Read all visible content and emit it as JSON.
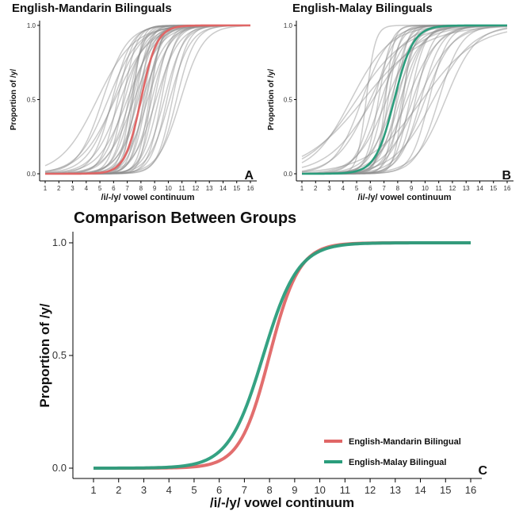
{
  "colors": {
    "mandarin": "#e06666",
    "malay": "#2a9d7c",
    "individual": "#8c8c8c",
    "axis": "#000000",
    "text": "#111111"
  },
  "chart_data": [
    {
      "id": "A",
      "type": "line",
      "title": "English-Mandarin Bilinguals",
      "panel_label": "A",
      "xlabel": "/i/-/y/ vowel continuum",
      "ylabel": "Proportion of /y/",
      "x_ticks": [
        1,
        2,
        3,
        4,
        5,
        6,
        7,
        8,
        9,
        10,
        11,
        12,
        13,
        14,
        15,
        16
      ],
      "y_ticks": [
        0.0,
        0.5,
        1.0
      ],
      "y_tick_labels": [
        "0.0",
        "0.5",
        "1.0"
      ],
      "xlim": [
        1,
        16
      ],
      "ylim": [
        0,
        1
      ],
      "group_curve": {
        "midpoint": 8.0,
        "slope": 1.7,
        "color": "mandarin"
      },
      "individual_curves": [
        {
          "midpoint": 4.8,
          "slope": 0.75
        },
        {
          "midpoint": 5.2,
          "slope": 1.1
        },
        {
          "midpoint": 5.6,
          "slope": 0.9
        },
        {
          "midpoint": 5.9,
          "slope": 1.4
        },
        {
          "midpoint": 6.1,
          "slope": 0.8
        },
        {
          "midpoint": 6.3,
          "slope": 1.7
        },
        {
          "midpoint": 6.5,
          "slope": 1.0
        },
        {
          "midpoint": 6.7,
          "slope": 2.0
        },
        {
          "midpoint": 6.8,
          "slope": 1.3
        },
        {
          "midpoint": 7.0,
          "slope": 0.95
        },
        {
          "midpoint": 7.1,
          "slope": 1.8
        },
        {
          "midpoint": 7.2,
          "slope": 1.2
        },
        {
          "midpoint": 7.3,
          "slope": 2.3
        },
        {
          "midpoint": 7.4,
          "slope": 1.5
        },
        {
          "midpoint": 7.5,
          "slope": 1.0
        },
        {
          "midpoint": 7.6,
          "slope": 2.1
        },
        {
          "midpoint": 7.7,
          "slope": 1.6
        },
        {
          "midpoint": 7.8,
          "slope": 1.3
        },
        {
          "midpoint": 7.9,
          "slope": 2.5
        },
        {
          "midpoint": 8.0,
          "slope": 1.8
        },
        {
          "midpoint": 8.1,
          "slope": 1.1
        },
        {
          "midpoint": 8.2,
          "slope": 2.2
        },
        {
          "midpoint": 8.3,
          "slope": 1.6
        },
        {
          "midpoint": 8.4,
          "slope": 1.9
        },
        {
          "midpoint": 8.5,
          "slope": 1.2
        },
        {
          "midpoint": 8.6,
          "slope": 2.4
        },
        {
          "midpoint": 8.8,
          "slope": 1.5
        },
        {
          "midpoint": 9.0,
          "slope": 1.9
        },
        {
          "midpoint": 9.1,
          "slope": 1.2
        },
        {
          "midpoint": 9.3,
          "slope": 1.6
        },
        {
          "midpoint": 9.5,
          "slope": 2.0
        },
        {
          "midpoint": 9.7,
          "slope": 1.4
        },
        {
          "midpoint": 9.9,
          "slope": 1.7
        },
        {
          "midpoint": 10.1,
          "slope": 1.3
        },
        {
          "midpoint": 10.3,
          "slope": 1.8
        },
        {
          "midpoint": 10.6,
          "slope": 1.5
        },
        {
          "midpoint": 10.9,
          "slope": 1.2
        },
        {
          "midpoint": 7.4,
          "slope": 3.0
        },
        {
          "midpoint": 8.7,
          "slope": 2.8
        },
        {
          "midpoint": 6.0,
          "slope": 1.0
        }
      ]
    },
    {
      "id": "B",
      "type": "line",
      "title": "English-Malay Bilinguals",
      "panel_label": "B",
      "xlabel": "/i/-/y/ vowel continuum",
      "ylabel": "Proportion of /y/",
      "x_ticks": [
        1,
        2,
        3,
        4,
        5,
        6,
        7,
        8,
        9,
        10,
        11,
        12,
        13,
        14,
        15,
        16
      ],
      "y_ticks": [
        0.0,
        0.5,
        1.0
      ],
      "y_tick_labels": [
        "0.0",
        "0.5",
        "1.0"
      ],
      "xlim": [
        1,
        16
      ],
      "ylim": [
        0,
        1
      ],
      "group_curve": {
        "midpoint": 7.75,
        "slope": 1.45,
        "color": "malay"
      },
      "individual_curves": [
        {
          "midpoint": 4.6,
          "slope": 0.7
        },
        {
          "midpoint": 5.0,
          "slope": 0.55
        },
        {
          "midpoint": 5.4,
          "slope": 1.0
        },
        {
          "midpoint": 5.7,
          "slope": 3.0
        },
        {
          "midpoint": 6.0,
          "slope": 0.8
        },
        {
          "midpoint": 6.3,
          "slope": 1.4
        },
        {
          "midpoint": 6.6,
          "slope": 2.2
        },
        {
          "midpoint": 6.8,
          "slope": 1.1
        },
        {
          "midpoint": 7.0,
          "slope": 1.7
        },
        {
          "midpoint": 7.2,
          "slope": 0.9
        },
        {
          "midpoint": 7.3,
          "slope": 2.4
        },
        {
          "midpoint": 7.5,
          "slope": 1.3
        },
        {
          "midpoint": 7.6,
          "slope": 1.9
        },
        {
          "midpoint": 7.8,
          "slope": 1.0
        },
        {
          "midpoint": 7.9,
          "slope": 2.6
        },
        {
          "midpoint": 8.0,
          "slope": 1.5
        },
        {
          "midpoint": 8.2,
          "slope": 1.2
        },
        {
          "midpoint": 8.3,
          "slope": 2.0
        },
        {
          "midpoint": 8.5,
          "slope": 1.4
        },
        {
          "midpoint": 8.7,
          "slope": 0.9
        },
        {
          "midpoint": 8.9,
          "slope": 1.8
        },
        {
          "midpoint": 9.1,
          "slope": 1.1
        },
        {
          "midpoint": 9.3,
          "slope": 1.6
        },
        {
          "midpoint": 9.5,
          "slope": 0.8
        },
        {
          "midpoint": 9.7,
          "slope": 1.3
        },
        {
          "midpoint": 10.0,
          "slope": 1.0
        },
        {
          "midpoint": 10.3,
          "slope": 1.5
        },
        {
          "midpoint": 10.6,
          "slope": 0.7
        },
        {
          "midpoint": 11.0,
          "slope": 1.2
        },
        {
          "midpoint": 7.1,
          "slope": 3.2
        },
        {
          "midpoint": 8.4,
          "slope": 2.9
        },
        {
          "midpoint": 6.2,
          "slope": 0.6
        },
        {
          "midpoint": 9.8,
          "slope": 0.5
        },
        {
          "midpoint": 11.5,
          "slope": 0.9
        },
        {
          "midpoint": 5.5,
          "slope": 0.45
        }
      ]
    },
    {
      "id": "C",
      "type": "line",
      "title": "Comparison Between Groups",
      "panel_label": "C",
      "xlabel": "/i/-/y/ vowel continuum",
      "ylabel": "Proportion of /y/",
      "x_ticks": [
        1,
        2,
        3,
        4,
        5,
        6,
        7,
        8,
        9,
        10,
        11,
        12,
        13,
        14,
        15,
        16
      ],
      "y_ticks": [
        0.0,
        0.5,
        1.0
      ],
      "y_tick_labels": [
        "0.0",
        "0.5",
        "1.0"
      ],
      "xlim": [
        1,
        16
      ],
      "ylim": [
        0,
        1
      ],
      "series": [
        {
          "name": "English-Mandarin Bilingual",
          "color": "mandarin",
          "midpoint": 8.0,
          "slope": 1.7
        },
        {
          "name": "English-Malay Bilingual",
          "color": "malay",
          "midpoint": 7.75,
          "slope": 1.45
        }
      ],
      "legend_position": "bottom-right"
    }
  ]
}
